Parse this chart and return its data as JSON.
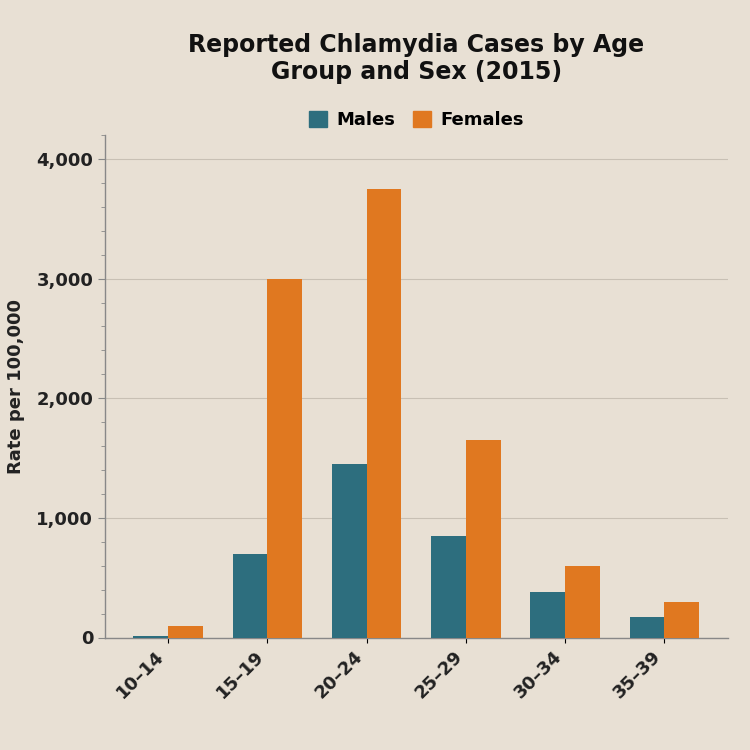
{
  "title": "Reported Chlamydia Cases by Age\nGroup and Sex (2015)",
  "ylabel": "Rate per 100,000",
  "age_groups": [
    "10–14",
    "15–19",
    "20–24",
    "25–29",
    "30–34",
    "35–39"
  ],
  "males": [
    15,
    700,
    1450,
    850,
    380,
    175
  ],
  "females": [
    100,
    3000,
    3750,
    1650,
    600,
    300
  ],
  "male_color": "#2d6e7e",
  "female_color": "#e07820",
  "ylim": [
    0,
    4200
  ],
  "yticks": [
    0,
    1000,
    2000,
    3000,
    4000
  ],
  "ytick_labels": [
    "0",
    "1,000",
    "2,000",
    "3,000",
    "4,000"
  ],
  "legend_labels": [
    "Males",
    "Females"
  ],
  "title_fontsize": 17,
  "axis_fontsize": 13,
  "tick_fontsize": 13,
  "legend_fontsize": 13,
  "bar_width": 0.35,
  "background_color": "#e8e0d4",
  "plot_bg_color": "#e8e0d4",
  "grid_color": "#c8c0b4",
  "spine_color": "#888888"
}
